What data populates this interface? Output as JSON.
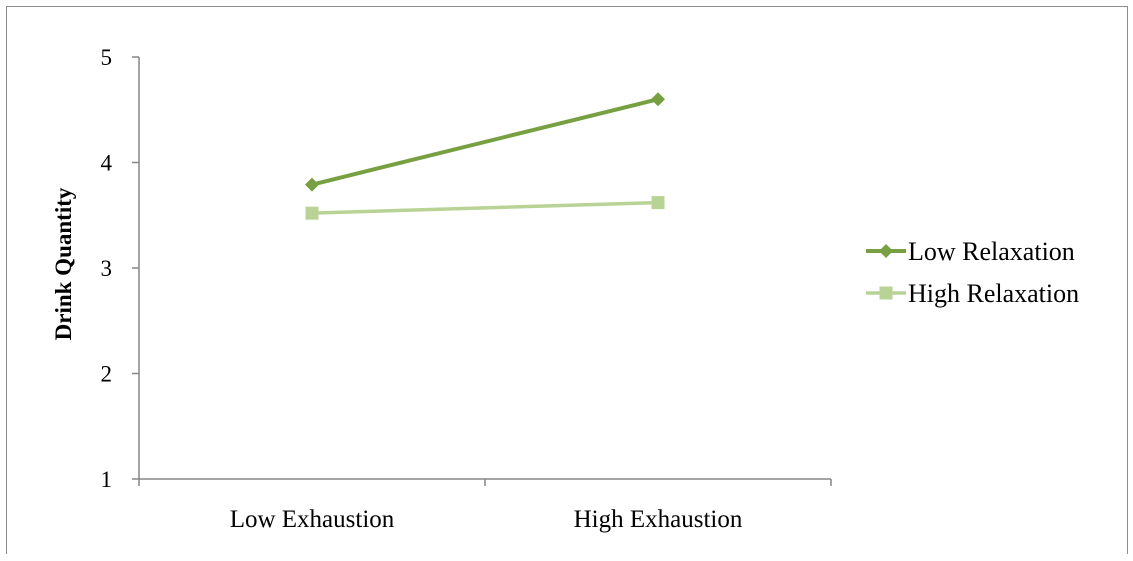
{
  "chart_data": {
    "type": "line",
    "title": "",
    "xlabel": "",
    "ylabel": "Drink Quantity",
    "ylim": [
      1,
      5
    ],
    "yticks": [
      "1",
      "2",
      "3",
      "4",
      "5"
    ],
    "categories": [
      "Low Exhaustion",
      "High Exhaustion"
    ],
    "series": [
      {
        "name": "Low Relaxation",
        "values": [
          3.79,
          4.6
        ],
        "color": "#77a043",
        "marker": "diamond"
      },
      {
        "name": "High Relaxation",
        "values": [
          3.52,
          3.62
        ],
        "color": "#b9d397",
        "marker": "square"
      }
    ],
    "grid": false,
    "legend_position": "right"
  }
}
